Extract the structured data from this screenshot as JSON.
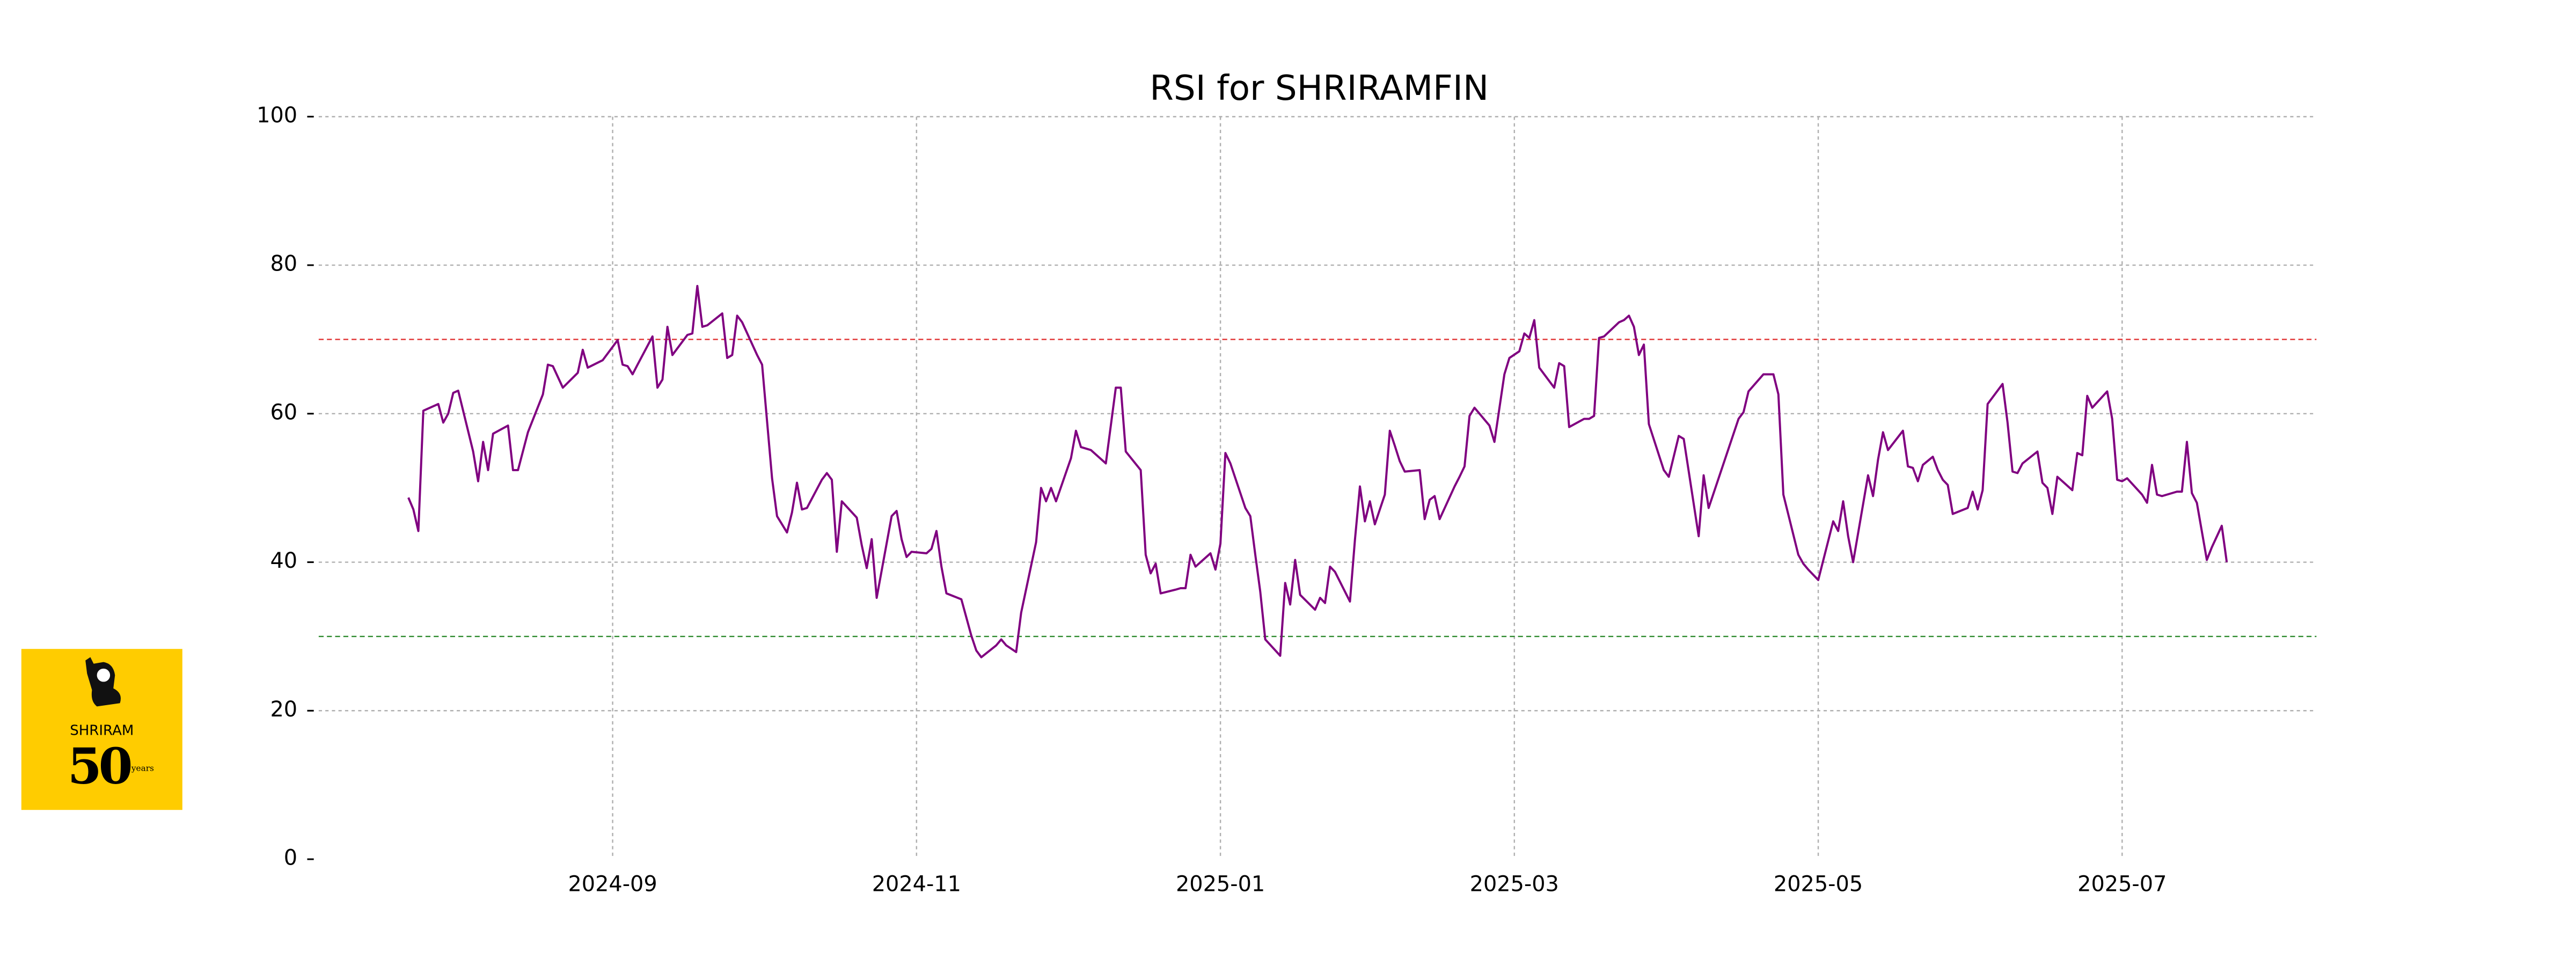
{
  "chart_data": {
    "type": "line",
    "title": "RSI for SHRIRAMFIN",
    "color": "#800080",
    "grid": true,
    "reference_lines": [
      {
        "value": 70,
        "color": "#e03030"
      },
      {
        "value": 30,
        "color": "#2e8b2e"
      }
    ],
    "xlim": [
      "2024-07-04",
      "2025-08-09"
    ],
    "xticks": [
      "2024-09",
      "2024-11",
      "2025-01",
      "2025-03",
      "2025-05",
      "2025-07"
    ],
    "ylim": [
      0,
      100
    ],
    "yticks": [
      0,
      20,
      40,
      60,
      80,
      100
    ],
    "x": [
      "2024-07-22",
      "2024-07-23",
      "2024-07-24",
      "2024-07-25",
      "2024-07-28",
      "2024-07-29",
      "2024-07-30",
      "2024-07-31",
      "2024-08-01",
      "2024-08-04",
      "2024-08-05",
      "2024-08-06",
      "2024-08-07",
      "2024-08-08",
      "2024-08-11",
      "2024-08-12",
      "2024-08-13",
      "2024-08-15",
      "2024-08-18",
      "2024-08-19",
      "2024-08-20",
      "2024-08-22",
      "2024-08-25",
      "2024-08-26",
      "2024-08-27",
      "2024-08-30",
      "2024-09-02",
      "2024-09-03",
      "2024-09-04",
      "2024-09-05",
      "2024-09-06",
      "2024-09-09",
      "2024-09-10",
      "2024-09-11",
      "2024-09-12",
      "2024-09-13",
      "2024-09-16",
      "2024-09-17",
      "2024-09-18",
      "2024-09-19",
      "2024-09-20",
      "2024-09-23",
      "2024-09-24",
      "2024-09-25",
      "2024-09-26",
      "2024-09-27",
      "2024-09-30",
      "2024-10-01",
      "2024-10-03",
      "2024-10-04",
      "2024-10-06",
      "2024-10-07",
      "2024-10-08",
      "2024-10-09",
      "2024-10-10",
      "2024-10-13",
      "2024-10-14",
      "2024-10-15",
      "2024-10-16",
      "2024-10-17",
      "2024-10-20",
      "2024-10-21",
      "2024-10-22",
      "2024-10-23",
      "2024-10-24",
      "2024-10-27",
      "2024-10-28",
      "2024-10-29",
      "2024-10-30",
      "2024-10-31",
      "2024-11-03",
      "2024-11-04",
      "2024-11-05",
      "2024-11-06",
      "2024-11-07",
      "2024-11-10",
      "2024-11-12",
      "2024-11-13",
      "2024-11-14",
      "2024-11-17",
      "2024-11-18",
      "2024-11-19",
      "2024-11-21",
      "2024-11-22",
      "2024-11-25",
      "2024-11-26",
      "2024-11-27",
      "2024-11-28",
      "2024-11-29",
      "2024-12-02",
      "2024-12-03",
      "2024-12-04",
      "2024-12-05",
      "2024-12-06",
      "2024-12-09",
      "2024-12-10",
      "2024-12-11",
      "2024-12-12",
      "2024-12-13",
      "2024-12-16",
      "2024-12-17",
      "2024-12-18",
      "2024-12-19",
      "2024-12-20",
      "2024-12-23",
      "2024-12-24",
      "2024-12-25",
      "2024-12-26",
      "2024-12-27",
      "2024-12-30",
      "2024-12-31",
      "2025-01-01",
      "2025-01-02",
      "2025-01-03",
      "2025-01-06",
      "2025-01-07",
      "2025-01-08",
      "2025-01-09",
      "2025-01-10",
      "2025-01-13",
      "2025-01-14",
      "2025-01-15",
      "2025-01-16",
      "2025-01-17",
      "2025-01-20",
      "2025-01-21",
      "2025-01-22",
      "2025-01-23",
      "2025-01-24",
      "2025-01-27",
      "2025-01-28",
      "2025-01-29",
      "2025-01-30",
      "2025-01-31",
      "2025-02-01",
      "2025-02-03",
      "2025-02-04",
      "2025-02-05",
      "2025-02-06",
      "2025-02-07",
      "2025-02-10",
      "2025-02-11",
      "2025-02-12",
      "2025-02-13",
      "2025-02-14",
      "2025-02-17",
      "2025-02-18",
      "2025-02-19",
      "2025-02-20",
      "2025-02-21",
      "2025-02-24",
      "2025-02-25",
      "2025-02-27",
      "2025-02-28",
      "2025-03-02",
      "2025-03-03",
      "2025-03-04",
      "2025-03-05",
      "2025-03-06",
      "2025-03-09",
      "2025-03-10",
      "2025-03-11",
      "2025-03-12",
      "2025-03-15",
      "2025-03-16",
      "2025-03-17",
      "2025-03-18",
      "2025-03-19",
      "2025-03-22",
      "2025-03-23",
      "2025-03-24",
      "2025-03-25",
      "2025-03-26",
      "2025-03-27",
      "2025-03-28",
      "2025-03-31",
      "2025-04-01",
      "2025-04-03",
      "2025-04-04",
      "2025-04-07",
      "2025-04-08",
      "2025-04-09",
      "2025-04-15",
      "2025-04-16",
      "2025-04-17",
      "2025-04-20",
      "2025-04-21",
      "2025-04-22",
      "2025-04-23",
      "2025-04-24",
      "2025-04-27",
      "2025-04-28",
      "2025-04-29",
      "2025-05-01",
      "2025-05-04",
      "2025-05-05",
      "2025-05-06",
      "2025-05-07",
      "2025-05-08",
      "2025-05-11",
      "2025-05-12",
      "2025-05-13",
      "2025-05-14",
      "2025-05-15",
      "2025-05-18",
      "2025-05-19",
      "2025-05-20",
      "2025-05-21",
      "2025-05-22",
      "2025-05-24",
      "2025-05-25",
      "2025-05-26",
      "2025-05-27",
      "2025-05-28",
      "2025-05-31",
      "2025-06-01",
      "2025-06-02",
      "2025-06-03",
      "2025-06-04",
      "2025-06-07",
      "2025-06-08",
      "2025-06-09",
      "2025-06-10",
      "2025-06-11",
      "2025-06-14",
      "2025-06-15",
      "2025-06-16",
      "2025-06-17",
      "2025-06-18",
      "2025-06-21",
      "2025-06-22",
      "2025-06-23",
      "2025-06-24",
      "2025-06-25",
      "2025-06-28",
      "2025-06-29",
      "2025-06-30",
      "2025-07-01",
      "2025-07-02",
      "2025-07-05",
      "2025-07-06",
      "2025-07-07",
      "2025-07-08",
      "2025-07-09",
      "2025-07-12",
      "2025-07-13",
      "2025-07-14",
      "2025-07-15",
      "2025-07-16",
      "2025-07-18",
      "2025-07-19",
      "2025-07-21",
      "2025-07-22"
    ],
    "values": [
      48.7,
      47.1,
      44.2,
      60.4,
      61.3,
      58.8,
      60.0,
      62.8,
      63.1,
      54.9,
      50.9,
      56.2,
      52.4,
      57.3,
      58.4,
      52.4,
      52.4,
      57.5,
      62.6,
      66.6,
      66.4,
      63.5,
      65.5,
      68.6,
      66.2,
      67.2,
      69.9,
      66.6,
      66.4,
      65.3,
      66.6,
      70.4,
      63.5,
      64.6,
      71.7,
      67.9,
      70.6,
      70.8,
      77.2,
      71.7,
      71.9,
      73.5,
      67.5,
      67.9,
      73.2,
      72.3,
      67.9,
      66.6,
      51.3,
      46.2,
      44.0,
      46.7,
      50.7,
      47.1,
      47.3,
      51.1,
      52.0,
      51.1,
      41.4,
      48.2,
      46.0,
      42.3,
      39.2,
      43.1,
      35.2,
      46.2,
      46.9,
      43.1,
      40.7,
      41.4,
      41.2,
      41.8,
      44.2,
      39.4,
      35.8,
      35.0,
      30.1,
      28.1,
      27.2,
      28.8,
      29.6,
      28.8,
      27.9,
      33.2,
      42.7,
      50.0,
      48.2,
      50.0,
      48.2,
      54.0,
      57.7,
      55.5,
      55.3,
      55.1,
      53.3,
      58.4,
      63.5,
      63.5,
      54.9,
      52.4,
      41.0,
      38.5,
      39.8,
      35.8,
      36.3,
      36.5,
      36.5,
      41.0,
      39.4,
      41.2,
      39.0,
      42.5,
      54.7,
      53.3,
      47.3,
      46.2,
      41.0,
      36.0,
      29.6,
      27.4,
      37.2,
      34.3,
      40.3,
      35.6,
      33.6,
      35.2,
      34.5,
      39.4,
      38.7,
      34.7,
      43.0,
      50.2,
      45.5,
      48.2,
      45.1,
      49.1,
      57.7,
      55.7,
      53.6,
      52.2,
      52.4,
      45.8,
      48.4,
      48.9,
      45.8,
      50.2,
      51.5,
      52.9,
      59.7,
      60.8,
      58.4,
      56.2,
      65.3,
      67.5,
      68.4,
      70.8,
      70.2,
      72.6,
      66.2,
      63.5,
      66.8,
      66.4,
      58.2,
      59.3,
      59.3,
      59.7,
      70.2,
      70.4,
      72.3,
      72.6,
      73.2,
      71.7,
      67.9,
      69.3,
      58.6,
      52.4,
      51.5,
      57.0,
      56.6,
      43.5,
      51.7,
      47.3,
      59.3,
      60.2,
      63.0,
      65.3,
      65.3,
      65.3,
      62.6,
      49.1,
      41.0,
      39.8,
      39.0,
      37.6,
      45.5,
      44.2,
      48.2,
      43.5,
      40.0,
      51.7,
      48.9,
      53.8,
      57.5,
      55.1,
      57.7,
      52.9,
      52.7,
      50.9,
      53.1,
      54.2,
      52.4,
      51.1,
      50.4,
      46.5,
      47.3,
      49.5,
      47.1,
      49.7,
      61.3,
      64.0,
      58.8,
      52.2,
      52.0,
      53.3,
      54.9,
      50.7,
      50.0,
      46.5,
      51.5,
      49.7,
      54.7,
      54.4,
      62.4,
      60.8,
      63.0,
      59.3,
      51.1,
      50.9,
      51.3,
      49.1,
      48.0,
      53.1,
      49.1,
      48.9,
      49.5,
      49.5,
      56.2,
      49.3,
      48.0,
      40.3,
      42.0,
      44.9,
      40.0
    ]
  },
  "logo": {
    "brand": "SHRIRAM",
    "number": "50",
    "suffix": "years"
  }
}
